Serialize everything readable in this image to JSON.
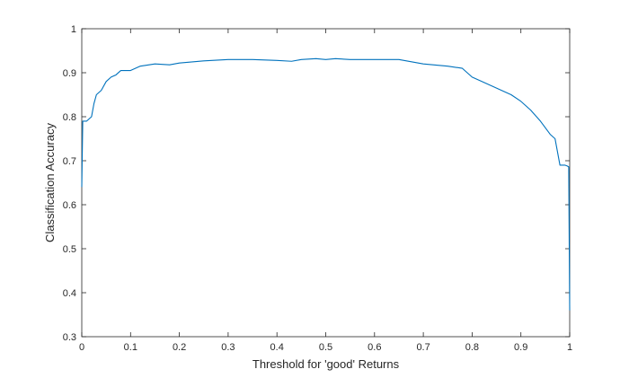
{
  "chart_data": {
    "type": "line",
    "title": "",
    "xlabel": "Threshold for 'good' Returns",
    "ylabel": "Classification Accuracy",
    "xlim": [
      0,
      1
    ],
    "ylim": [
      0.3,
      1
    ],
    "grid": false,
    "legend": "none",
    "line_color": "#0072BD",
    "x_ticks": [
      0,
      0.1,
      0.2,
      0.3,
      0.4,
      0.5,
      0.6,
      0.7,
      0.8,
      0.9,
      1
    ],
    "x_tick_labels": [
      "0",
      "0.1",
      "0.2",
      "0.3",
      "0.4",
      "0.5",
      "0.6",
      "0.7",
      "0.8",
      "0.9",
      "1"
    ],
    "y_ticks": [
      0.3,
      0.4,
      0.5,
      0.6,
      0.7,
      0.8,
      0.9,
      1
    ],
    "y_tick_labels": [
      "0.3",
      "0.4",
      "0.5",
      "0.6",
      "0.7",
      "0.8",
      "0.9",
      "1"
    ],
    "series": [
      {
        "x": [
          0,
          0.002,
          0.005,
          0.01,
          0.02,
          0.025,
          0.03,
          0.04,
          0.05,
          0.06,
          0.07,
          0.08,
          0.1,
          0.12,
          0.15,
          0.18,
          0.2,
          0.25,
          0.3,
          0.35,
          0.4,
          0.43,
          0.45,
          0.48,
          0.5,
          0.52,
          0.55,
          0.6,
          0.65,
          0.7,
          0.75,
          0.78,
          0.8,
          0.82,
          0.85,
          0.88,
          0.9,
          0.92,
          0.94,
          0.96,
          0.97,
          0.98,
          0.99,
          0.995,
          0.998,
          1.0
        ],
        "y": [
          0.64,
          0.79,
          0.79,
          0.79,
          0.8,
          0.83,
          0.85,
          0.86,
          0.88,
          0.89,
          0.895,
          0.905,
          0.905,
          0.915,
          0.92,
          0.918,
          0.922,
          0.927,
          0.93,
          0.93,
          0.928,
          0.926,
          0.93,
          0.932,
          0.93,
          0.932,
          0.93,
          0.93,
          0.93,
          0.92,
          0.915,
          0.91,
          0.89,
          0.88,
          0.865,
          0.85,
          0.835,
          0.815,
          0.79,
          0.76,
          0.75,
          0.69,
          0.69,
          0.688,
          0.686,
          0.36
        ]
      }
    ]
  }
}
